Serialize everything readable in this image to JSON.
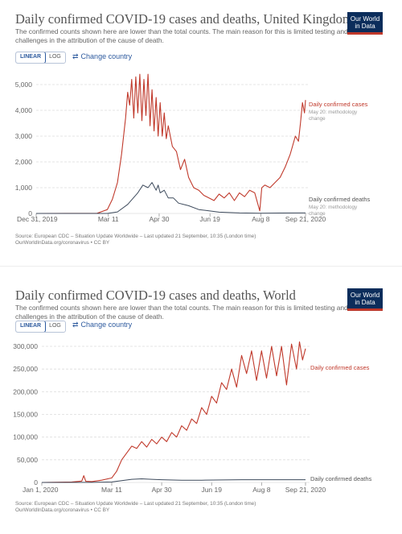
{
  "charts": [
    {
      "title": "Daily confirmed COVID-19 cases and deaths, United Kingdom",
      "subtitle": "The confirmed counts shown here are lower than the total counts. The main reason for this is limited testing and challenges in the attribution of the cause of death.",
      "logo": "Our World in Data",
      "toggle": [
        "LINEAR",
        "LOG"
      ],
      "change_country": "Change country",
      "source_line1": "Source: European CDC – Situation Update Worldwide – Last updated 21 September, 10:35 (London time)",
      "source_line2": "OurWorldInData.org/coronavirus • CC BY",
      "cases_label": "Daily confirmed cases",
      "cases_note": "May 20: methodology change",
      "deaths_label": "Daily confirmed deaths",
      "deaths_note": "May 20: methodology change"
    },
    {
      "title": "Daily confirmed COVID-19 cases and deaths, World",
      "subtitle": "The confirmed counts shown here are lower than the total counts. The main reason for this is limited testing and challenges in the attribution of the cause of death.",
      "logo": "Our World in Data",
      "toggle": [
        "LINEAR",
        "LOG"
      ],
      "change_country": "Change country",
      "source_line1": "Source: European CDC – Situation Update Worldwide – Last updated 21 September, 10:35 (London time)",
      "source_line2": "OurWorldInData.org/coronavirus • CC BY",
      "cases_label": "Daily confirmed cases",
      "deaths_label": "Daily confirmed deaths"
    }
  ],
  "colors": {
    "cases": "#c0392b",
    "deaths": "#3d4a5c",
    "grid": "#dddddd",
    "link": "#2d5a9e"
  },
  "chart_data": [
    {
      "type": "line",
      "title": "Daily confirmed COVID-19 cases and deaths, United Kingdom",
      "x_ticks": [
        "Dec 31, 2019",
        "Mar 11",
        "Apr 30",
        "Jun 19",
        "Aug 8",
        "Sep 21, 2020"
      ],
      "x_tick_days": [
        0,
        71,
        121,
        171,
        221,
        265
      ],
      "x_range_days": [
        0,
        265
      ],
      "y_ticks": [
        "0",
        "1,000",
        "2,000",
        "3,000",
        "4,000",
        "5,000"
      ],
      "ylim": [
        0,
        5200
      ],
      "grid": true,
      "series": [
        {
          "name": "Daily confirmed cases",
          "x_days": [
            0,
            60,
            70,
            75,
            80,
            84,
            88,
            90,
            92,
            94,
            96,
            98,
            100,
            102,
            104,
            106,
            108,
            110,
            112,
            114,
            116,
            118,
            120,
            122,
            124,
            126,
            128,
            130,
            134,
            138,
            142,
            146,
            150,
            155,
            160,
            165,
            170,
            175,
            180,
            185,
            190,
            195,
            200,
            205,
            210,
            215,
            220,
            222,
            225,
            230,
            235,
            240,
            245,
            250,
            255,
            258,
            260,
            262,
            264,
            265
          ],
          "values": [
            0,
            5,
            150,
            550,
            1200,
            2300,
            3700,
            4700,
            4200,
            5200,
            3700,
            5300,
            3900,
            5400,
            3600,
            5200,
            3800,
            5400,
            3400,
            4800,
            3200,
            4500,
            3000,
            4300,
            3000,
            3900,
            2900,
            3400,
            2600,
            2400,
            1700,
            2100,
            1400,
            1000,
            900,
            700,
            600,
            500,
            750,
            600,
            800,
            500,
            800,
            650,
            900,
            800,
            100,
            1000,
            1100,
            1000,
            1200,
            1400,
            1800,
            2300,
            3000,
            2800,
            3500,
            4300,
            3900,
            4400
          ]
        },
        {
          "name": "Daily confirmed deaths",
          "x_days": [
            0,
            70,
            80,
            90,
            100,
            105,
            110,
            114,
            118,
            120,
            122,
            126,
            130,
            135,
            140,
            150,
            160,
            170,
            180,
            200,
            220,
            240,
            265
          ],
          "values": [
            0,
            0,
            60,
            350,
            800,
            1100,
            1000,
            1200,
            900,
            1100,
            800,
            900,
            600,
            600,
            400,
            300,
            150,
            100,
            50,
            20,
            10,
            15,
            20
          ]
        }
      ]
    },
    {
      "type": "line",
      "title": "Daily confirmed COVID-19 cases and deaths, World",
      "x_ticks": [
        "Jan 1, 2020",
        "Mar 11",
        "Apr 30",
        "Jun 19",
        "Aug 8",
        "Sep 21, 2020"
      ],
      "x_tick_days": [
        0,
        70,
        120,
        170,
        220,
        264
      ],
      "x_range_days": [
        0,
        264
      ],
      "y_ticks": [
        "0",
        "50,000",
        "100,000",
        "150,000",
        "200,000",
        "250,000",
        "300,000"
      ],
      "ylim": [
        0,
        320000
      ],
      "grid": true,
      "series": [
        {
          "name": "Daily confirmed cases",
          "x_days": [
            0,
            30,
            40,
            42,
            44,
            50,
            60,
            70,
            75,
            80,
            85,
            90,
            95,
            100,
            105,
            110,
            115,
            120,
            125,
            130,
            135,
            140,
            145,
            150,
            155,
            160,
            165,
            170,
            175,
            180,
            185,
            190,
            195,
            200,
            205,
            210,
            215,
            220,
            225,
            230,
            235,
            240,
            245,
            250,
            255,
            258,
            261,
            264
          ],
          "values": [
            0,
            1000,
            3000,
            15000,
            2500,
            2000,
            5000,
            10000,
            25000,
            50000,
            65000,
            80000,
            75000,
            90000,
            78000,
            95000,
            85000,
            100000,
            90000,
            110000,
            100000,
            125000,
            115000,
            140000,
            130000,
            165000,
            150000,
            190000,
            175000,
            220000,
            205000,
            250000,
            210000,
            280000,
            240000,
            290000,
            225000,
            290000,
            230000,
            300000,
            235000,
            300000,
            215000,
            305000,
            250000,
            310000,
            270000,
            295000
          ]
        },
        {
          "name": "Daily confirmed deaths",
          "x_days": [
            0,
            50,
            70,
            80,
            90,
            100,
            110,
            120,
            140,
            160,
            180,
            200,
            220,
            240,
            264
          ],
          "values": [
            0,
            100,
            1000,
            4000,
            7000,
            8000,
            7000,
            6000,
            5000,
            5000,
            5500,
            6000,
            6000,
            6000,
            6000
          ]
        }
      ]
    }
  ]
}
